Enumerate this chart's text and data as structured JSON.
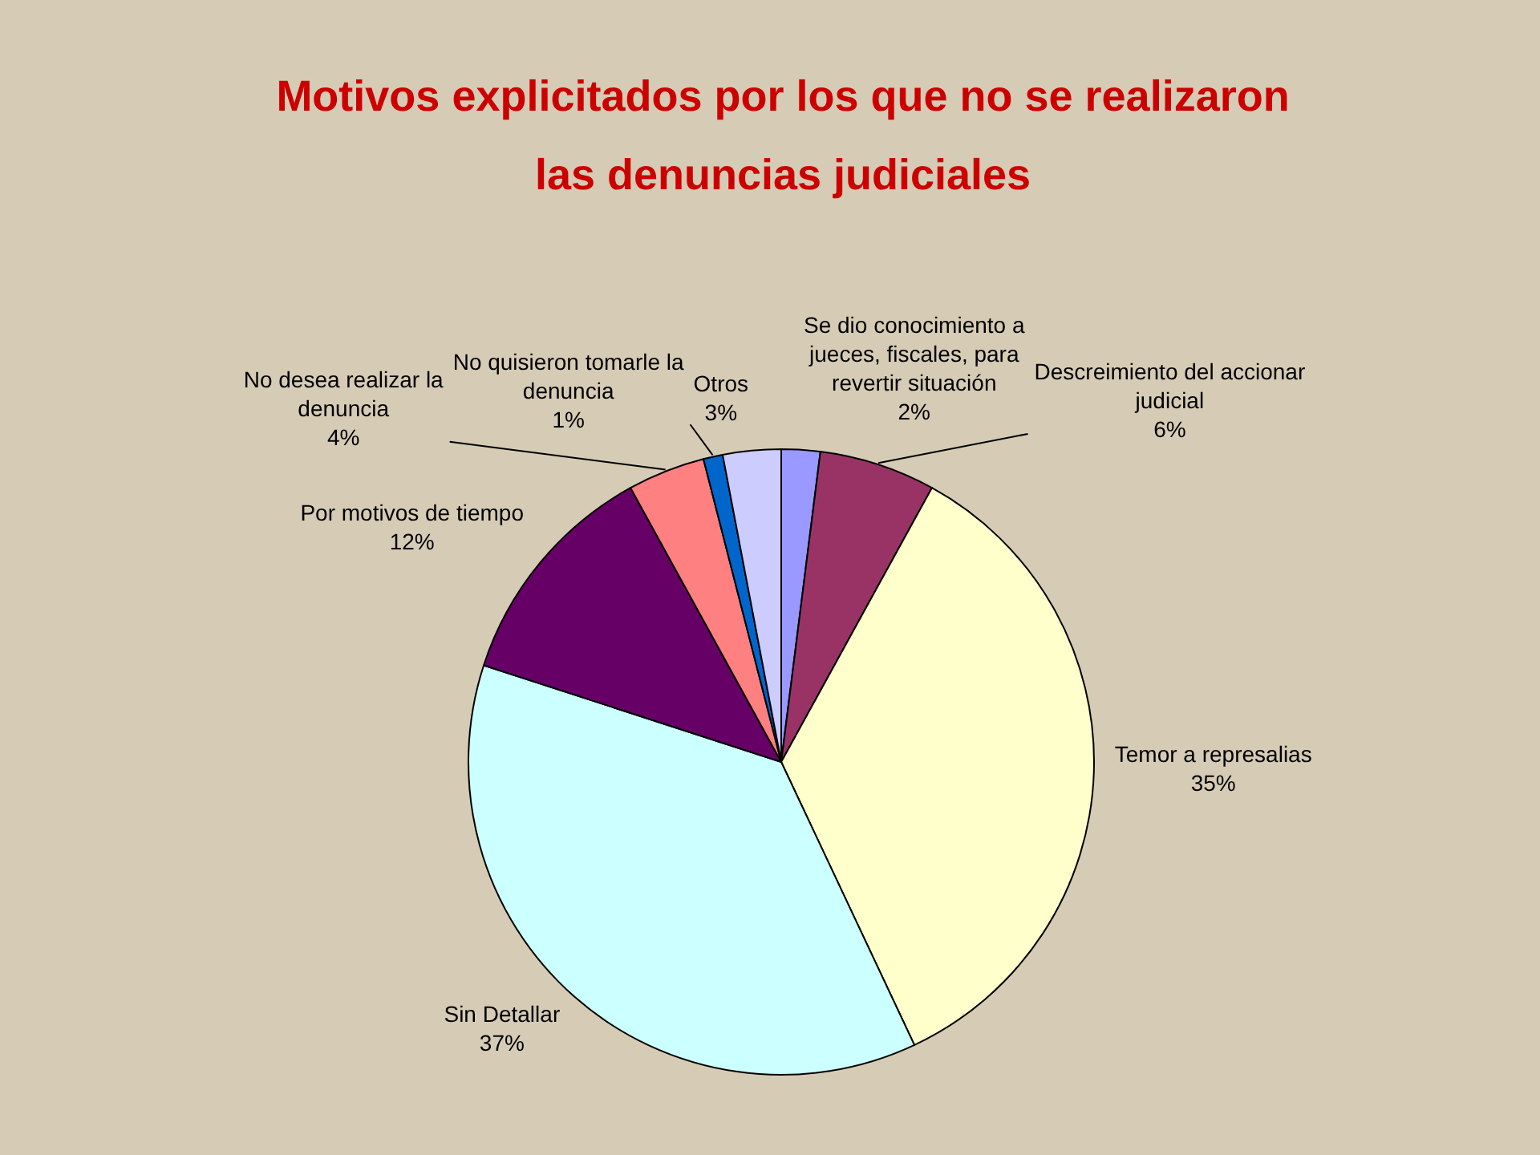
{
  "chart_data": {
    "type": "pie",
    "title": "Motivos explicitados por los que no se realizaron las denuncias judiciales",
    "categories": [
      "Se dio conocimiento a jueces, fiscales, para revertir situación",
      "Descreimiento del accionar judicial",
      "Temor a represalias",
      "Sin Detallar",
      "Por motivos de tiempo",
      "No desea realizar la denuncia",
      "No quisieron tomarle la denuncia",
      "Otros"
    ],
    "values": [
      2,
      6,
      35,
      37,
      12,
      4,
      1,
      3
    ],
    "value_labels": [
      "2%",
      "6%",
      "35%",
      "37%",
      "12%",
      "4%",
      "1%",
      "3%"
    ],
    "colors": [
      "#9999ff",
      "#993366",
      "#ffffcc",
      "#ccffff",
      "#660066",
      "#ff8080",
      "#0066cc",
      "#ccccff"
    ]
  }
}
